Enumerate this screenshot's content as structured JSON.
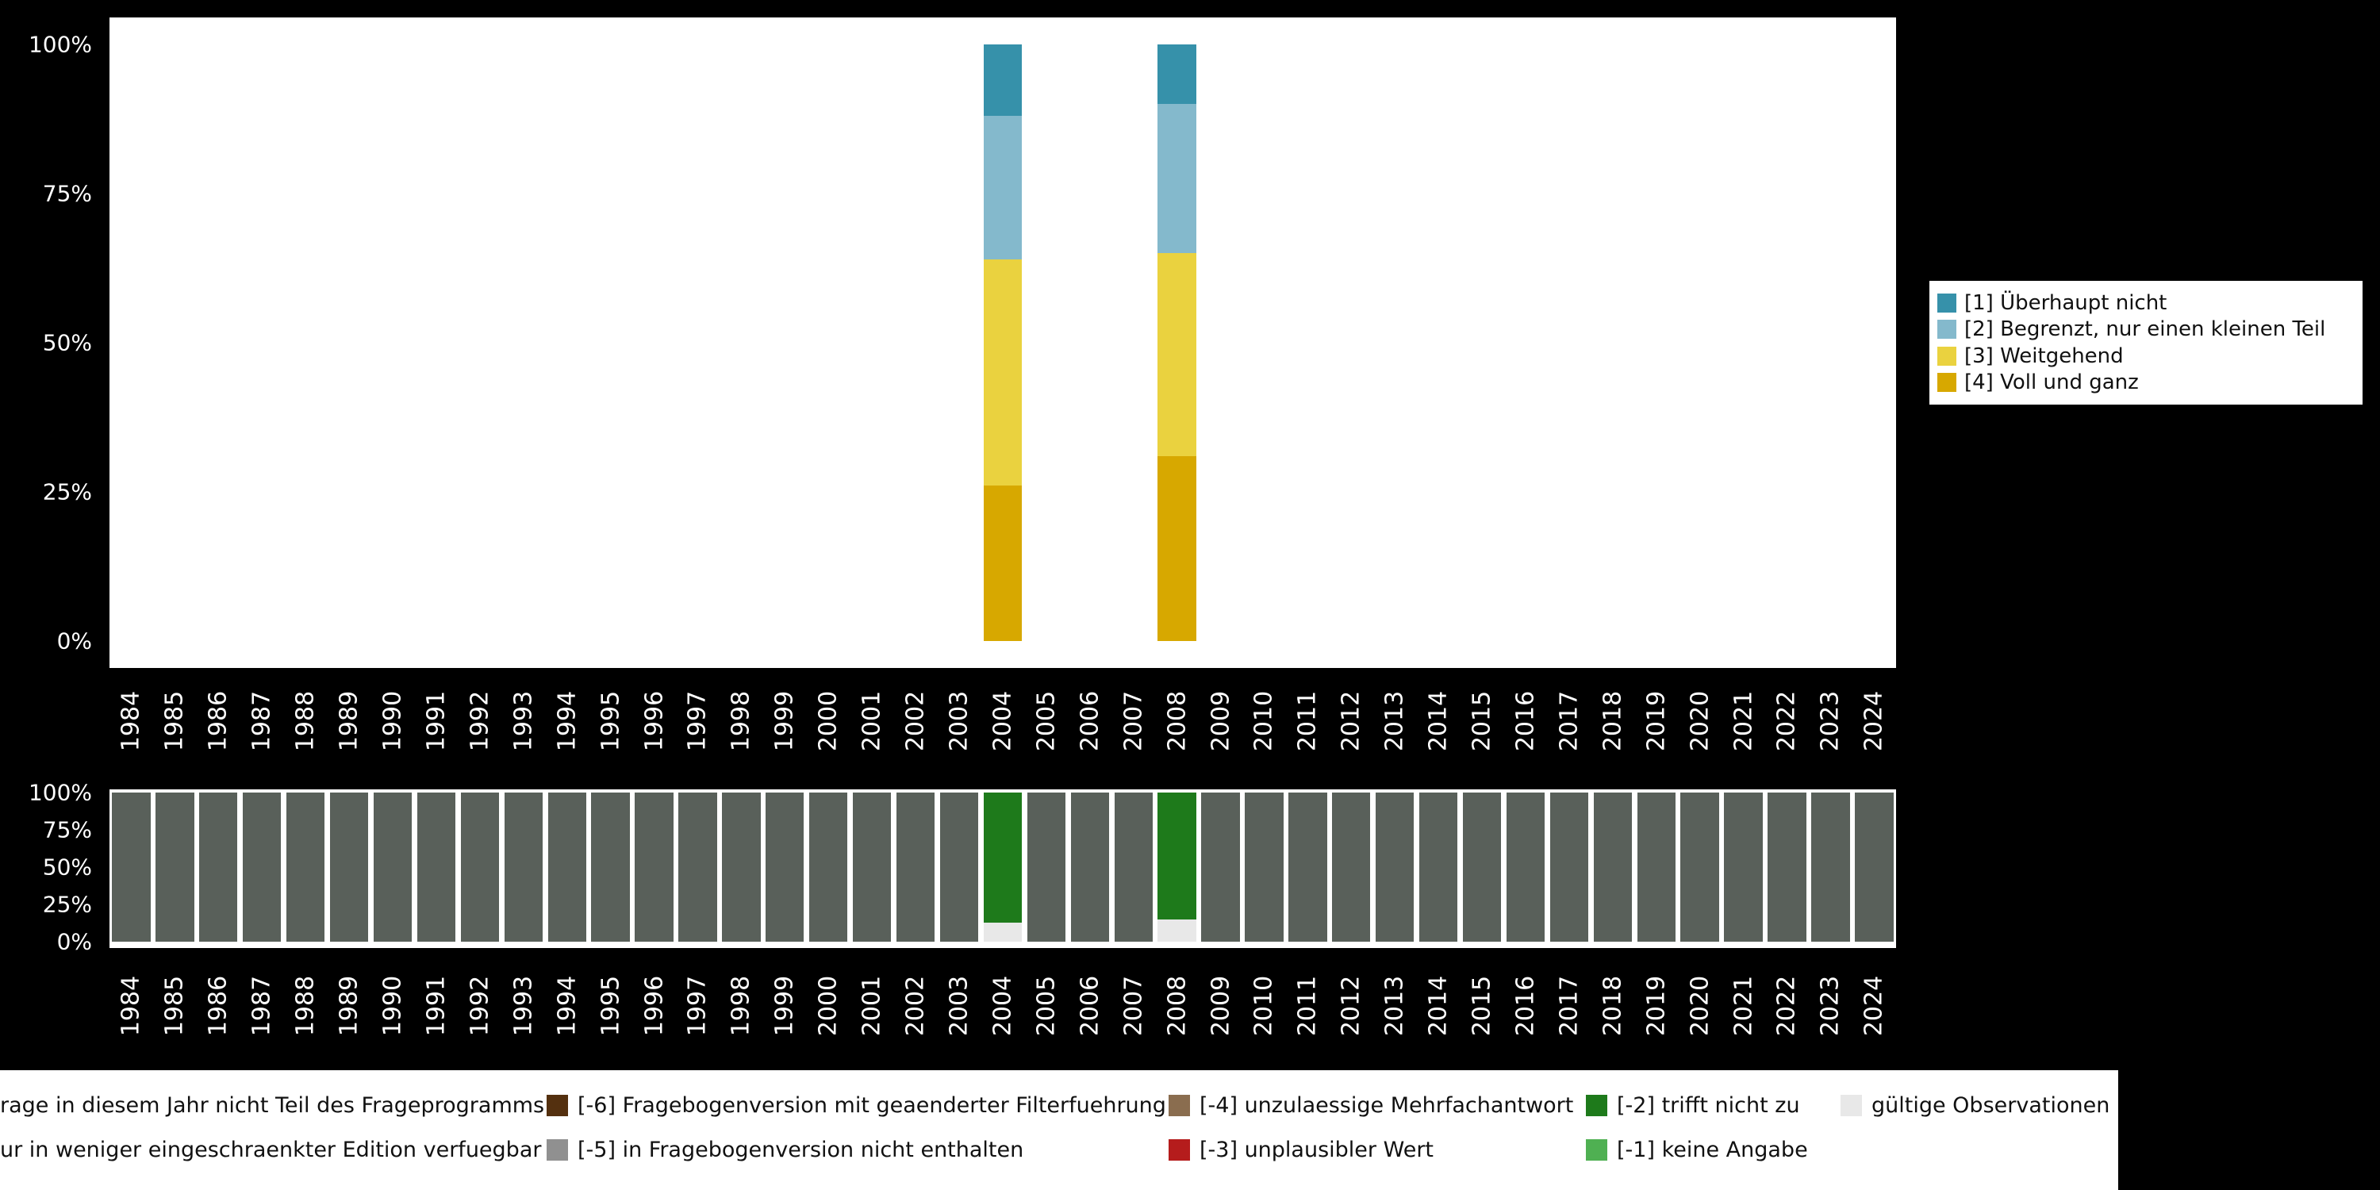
{
  "colors": {
    "background": "#000000",
    "plot_background": "#ffffff",
    "axis_text": "#ffffff",
    "legend_background": "#ffffff",
    "legend_text": "#111111"
  },
  "answer_legend": {
    "items": [
      {
        "label": "[1] Überhaupt nicht",
        "color": "#3691aa"
      },
      {
        "label": "[2] Begrenzt, nur einen kleinen Teil",
        "color": "#84b9cc"
      },
      {
        "label": "[3] Weitgehend",
        "color": "#ead23f"
      },
      {
        "label": "[4] Voll und ganz",
        "color": "#d7a800"
      }
    ]
  },
  "missing_legend": {
    "rows": [
      [
        {
          "label": "rage in diesem Jahr nicht Teil des Frageprogramms",
          "color": null
        },
        {
          "label": "[-6] Fragebogenversion mit geaenderter Filterfuehrung",
          "color": "#54300f"
        },
        {
          "label": "[-4] unzulaessige Mehrfachantwort",
          "color": "#8a6d4f"
        },
        {
          "label": "[-2] trifft nicht zu",
          "color": "#1e7a1b"
        },
        {
          "label": "gültige Observationen",
          "color": "#e8e8e8"
        }
      ],
      [
        {
          "label": "ur in weniger eingeschraenkter Edition verfuegbar",
          "color": null
        },
        {
          "label": "[-5] in Fragebogenversion nicht enthalten",
          "color": "#909090"
        },
        {
          "label": "[-3] unplausibler Wert",
          "color": "#b51c1c"
        },
        {
          "label": "[-1] keine Angabe",
          "color": "#4fb052"
        }
      ]
    ]
  },
  "chart_data": [
    {
      "type": "bar",
      "stacked": true,
      "title": "",
      "xlabel": "",
      "ylabel": "",
      "ylim": [
        0,
        100
      ],
      "ytick_labels": [
        "100%",
        "75%",
        "50%",
        "25%",
        "0%"
      ],
      "legend_position": "right",
      "x": [
        "1984",
        "1985",
        "1986",
        "1987",
        "1988",
        "1989",
        "1990",
        "1991",
        "1992",
        "1993",
        "1994",
        "1995",
        "1996",
        "1997",
        "1998",
        "1999",
        "2000",
        "2001",
        "2002",
        "2003",
        "2004",
        "2005",
        "2006",
        "2007",
        "2008",
        "2009",
        "2010",
        "2011",
        "2012",
        "2013",
        "2014",
        "2015",
        "2016",
        "2017",
        "2018",
        "2019",
        "2020",
        "2021",
        "2022",
        "2023",
        "2024"
      ],
      "series": [
        {
          "name": "[1] Überhaupt nicht",
          "color": "#3691aa",
          "values": {
            "default": 0,
            "2004": 12,
            "2008": 10
          }
        },
        {
          "name": "[2] Begrenzt, nur einen kleinen Teil",
          "color": "#84b9cc",
          "values": {
            "default": 0,
            "2004": 24,
            "2008": 25
          }
        },
        {
          "name": "[3] Weitgehend",
          "color": "#ead23f",
          "values": {
            "default": 0,
            "2004": 38,
            "2008": 34
          }
        },
        {
          "name": "[4] Voll und ganz",
          "color": "#d7a800",
          "values": {
            "default": 0,
            "2004": 26,
            "2008": 31
          }
        }
      ]
    },
    {
      "type": "bar",
      "stacked": true,
      "title": "",
      "xlabel": "",
      "ylabel": "",
      "ylim": [
        0,
        100
      ],
      "ytick_labels": [
        "100%",
        "75%",
        "50%",
        "25%",
        "0%"
      ],
      "legend_position": "bottom",
      "x": [
        "1984",
        "1985",
        "1986",
        "1987",
        "1988",
        "1989",
        "1990",
        "1991",
        "1992",
        "1993",
        "1994",
        "1995",
        "1996",
        "1997",
        "1998",
        "1999",
        "2000",
        "2001",
        "2002",
        "2003",
        "2004",
        "2005",
        "2006",
        "2007",
        "2008",
        "2009",
        "2010",
        "2011",
        "2012",
        "2013",
        "2014",
        "2015",
        "2016",
        "2017",
        "2018",
        "2019",
        "2020",
        "2021",
        "2022",
        "2023",
        "2024"
      ],
      "series": [
        {
          "name": "rage in diesem Jahr nicht Teil des Frageprogramms",
          "color": "#59605a",
          "values": {
            "default": 100,
            "2004": 0,
            "2008": 0
          }
        },
        {
          "name": "[-2] trifft nicht zu",
          "color": "#1e7a1b",
          "values": {
            "default": 0,
            "2004": 87,
            "2008": 85
          }
        },
        {
          "name": "gültige Observationen",
          "color": "#e8e8e8",
          "values": {
            "default": 0,
            "2004": 13,
            "2008": 15
          }
        }
      ]
    }
  ]
}
